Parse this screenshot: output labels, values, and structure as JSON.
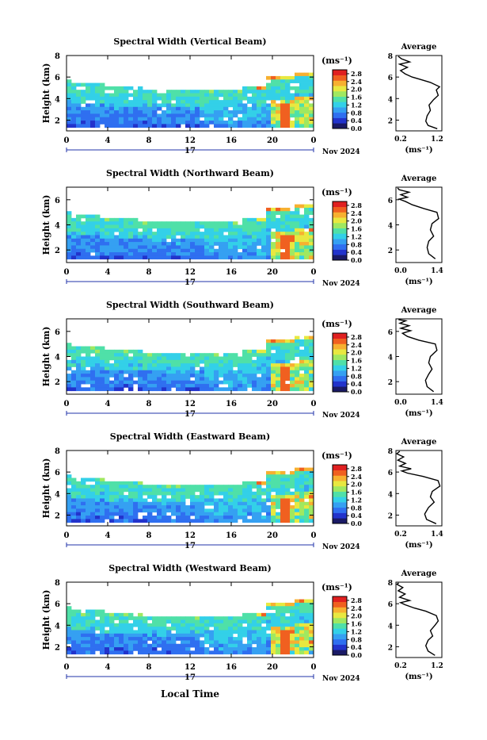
{
  "figure": {
    "bottom_label": "Local Time",
    "date_label": "Nov 2024",
    "day_label": "17",
    "x_ticks": [
      "0",
      "4",
      "8",
      "12",
      "16",
      "20",
      "0"
    ],
    "colorbar_unit": "(ms⁻¹)",
    "avg_xlabel": "(ms⁻¹)",
    "avg_title": "Average",
    "y_axis_label": "Height (km)",
    "colormap": [
      "#1a1a66",
      "#2233cc",
      "#2f6ff0",
      "#35a0f2",
      "#33d0e8",
      "#4fe0a8",
      "#a0e860",
      "#e8e840",
      "#f7b030",
      "#f06020",
      "#e02020"
    ]
  },
  "chart_data": [
    {
      "type": "heatmap",
      "title": "Spectral Width (Vertical Beam)",
      "ylabel": "Height (km)",
      "xlabel": "Local Time",
      "y_ticks": [
        "2",
        "4",
        "6",
        "8"
      ],
      "ylim": [
        1,
        8
      ],
      "xlim": [
        0,
        24
      ],
      "colorbar": {
        "label": "(ms⁻¹)",
        "ticks": [
          "0.0",
          "0.4",
          "0.8",
          "1.2",
          "1.6",
          "2.0",
          "2.4",
          "2.8"
        ],
        "range": [
          0,
          3.0
        ]
      },
      "average": {
        "title": "Average",
        "xlabel": "(ms⁻¹)",
        "x_ticks": [
          "0.2",
          "1.2"
        ],
        "y_ticks": [
          "2",
          "4",
          "6",
          "8"
        ],
        "xlim": [
          0.2,
          1.2
        ],
        "ylim": [
          1,
          8
        ],
        "points": [
          [
            1.1,
            1.2
          ],
          [
            0.9,
            1.5
          ],
          [
            0.85,
            1.9
          ],
          [
            0.88,
            2.4
          ],
          [
            0.95,
            2.9
          ],
          [
            0.92,
            3.4
          ],
          [
            1.02,
            3.9
          ],
          [
            1.12,
            4.3
          ],
          [
            1.08,
            4.8
          ],
          [
            1.15,
            5.1
          ],
          [
            0.95,
            5.5
          ],
          [
            0.72,
            5.8
          ],
          [
            0.55,
            6.0
          ],
          [
            0.4,
            6.3
          ],
          [
            0.3,
            6.6
          ],
          [
            0.45,
            6.9
          ],
          [
            0.28,
            7.2
          ],
          [
            0.5,
            7.4
          ],
          [
            0.32,
            7.7
          ],
          [
            0.25,
            7.95
          ]
        ]
      }
    },
    {
      "type": "heatmap",
      "title": "Spectral Width (Northward Beam)",
      "ylabel": "Height (km)",
      "xlabel": "Local Time",
      "y_ticks": [
        "2",
        "4",
        "6"
      ],
      "ylim": [
        1,
        7
      ],
      "xlim": [
        0,
        24
      ],
      "colorbar": {
        "label": "(ms⁻¹)",
        "ticks": [
          "0.0",
          "0.4",
          "0.8",
          "1.2",
          "1.6",
          "2.0",
          "2.4",
          "2.8"
        ],
        "range": [
          0,
          3.0
        ]
      },
      "average": {
        "title": "Average",
        "xlabel": "(ms⁻¹)",
        "x_ticks": [
          "0.0",
          "1.4"
        ],
        "y_ticks": [
          "2",
          "4",
          "6"
        ],
        "xlim": [
          0.0,
          1.4
        ],
        "ylim": [
          1,
          7
        ],
        "points": [
          [
            1.2,
            1.3
          ],
          [
            1.0,
            1.7
          ],
          [
            0.95,
            2.2
          ],
          [
            1.0,
            2.7
          ],
          [
            1.15,
            3.1
          ],
          [
            1.05,
            3.6
          ],
          [
            1.1,
            4.1
          ],
          [
            1.3,
            4.5
          ],
          [
            1.25,
            5.0
          ],
          [
            0.85,
            5.3
          ],
          [
            0.5,
            5.6
          ],
          [
            0.3,
            5.85
          ],
          [
            0.1,
            6.05
          ],
          [
            0.35,
            6.2
          ],
          [
            0.15,
            6.4
          ],
          [
            0.4,
            6.6
          ],
          [
            0.1,
            6.8
          ],
          [
            0.05,
            6.95
          ]
        ]
      }
    },
    {
      "type": "heatmap",
      "title": "Spectral Width (Southward Beam)",
      "ylabel": "Height (km)",
      "xlabel": "Local Time",
      "y_ticks": [
        "2",
        "4",
        "6"
      ],
      "ylim": [
        1,
        7
      ],
      "xlim": [
        0,
        24
      ],
      "colorbar": {
        "label": "(ms⁻¹)",
        "ticks": [
          "0.0",
          "0.4",
          "0.8",
          "1.2",
          "1.6",
          "2.0",
          "2.4",
          "2.8"
        ],
        "range": [
          0,
          3.0
        ]
      },
      "average": {
        "title": "Average",
        "xlabel": "(ms⁻¹)",
        "x_ticks": [
          "0.0",
          "1.4"
        ],
        "y_ticks": [
          "2",
          "4",
          "6"
        ],
        "xlim": [
          0.0,
          1.4
        ],
        "ylim": [
          1,
          7
        ],
        "points": [
          [
            1.15,
            1.2
          ],
          [
            0.95,
            1.6
          ],
          [
            0.9,
            2.1
          ],
          [
            1.0,
            2.6
          ],
          [
            1.1,
            3.0
          ],
          [
            1.0,
            3.5
          ],
          [
            1.05,
            4.0
          ],
          [
            1.25,
            4.5
          ],
          [
            1.2,
            5.0
          ],
          [
            0.7,
            5.3
          ],
          [
            0.35,
            5.6
          ],
          [
            0.2,
            5.85
          ],
          [
            0.45,
            6.05
          ],
          [
            0.15,
            6.25
          ],
          [
            0.4,
            6.45
          ],
          [
            0.12,
            6.65
          ],
          [
            0.3,
            6.85
          ],
          [
            0.08,
            6.95
          ]
        ]
      }
    },
    {
      "type": "heatmap",
      "title": "Spectral Width (Eastward Beam)",
      "ylabel": "Height (km)",
      "xlabel": "Local Time",
      "y_ticks": [
        "2",
        "4",
        "6",
        "8"
      ],
      "ylim": [
        1,
        8
      ],
      "xlim": [
        0,
        24
      ],
      "colorbar": {
        "label": "(ms⁻¹)",
        "ticks": [
          "0.0",
          "0.4",
          "0.8",
          "1.2",
          "1.6",
          "2.0",
          "2.4",
          "2.8"
        ],
        "range": [
          0,
          3.0
        ]
      },
      "average": {
        "title": "Average",
        "xlabel": "(ms⁻¹)",
        "x_ticks": [
          "0.2",
          "1.4"
        ],
        "y_ticks": [
          "2",
          "4",
          "6",
          "8"
        ],
        "xlim": [
          0.2,
          1.4
        ],
        "ylim": [
          1,
          8
        ],
        "points": [
          [
            1.25,
            1.2
          ],
          [
            1.0,
            1.6
          ],
          [
            0.95,
            2.1
          ],
          [
            1.05,
            2.7
          ],
          [
            1.2,
            3.2
          ],
          [
            1.1,
            3.7
          ],
          [
            1.15,
            4.2
          ],
          [
            1.35,
            4.7
          ],
          [
            1.3,
            5.2
          ],
          [
            0.9,
            5.6
          ],
          [
            0.5,
            5.9
          ],
          [
            0.35,
            6.1
          ],
          [
            0.6,
            6.3
          ],
          [
            0.3,
            6.55
          ],
          [
            0.45,
            6.8
          ],
          [
            0.25,
            7.1
          ],
          [
            0.4,
            7.4
          ],
          [
            0.22,
            7.7
          ],
          [
            0.3,
            7.95
          ]
        ]
      }
    },
    {
      "type": "heatmap",
      "title": "Spectral Width (Westward Beam)",
      "ylabel": "Height (km)",
      "xlabel": "Local Time",
      "y_ticks": [
        "2",
        "4",
        "6",
        "8"
      ],
      "ylim": [
        1,
        8
      ],
      "xlim": [
        0,
        24
      ],
      "colorbar": {
        "label": "(ms⁻¹)",
        "ticks": [
          "0.0",
          "0.4",
          "0.8",
          "1.2",
          "1.6",
          "2.0",
          "2.4",
          "2.8"
        ],
        "range": [
          0,
          3.0
        ]
      },
      "average": {
        "title": "Average",
        "xlabel": "(ms⁻¹)",
        "x_ticks": [
          "0.2",
          "1.2"
        ],
        "y_ticks": [
          "2",
          "4",
          "6",
          "8"
        ],
        "xlim": [
          0.2,
          1.2
        ],
        "ylim": [
          1,
          8
        ],
        "points": [
          [
            1.05,
            1.2
          ],
          [
            0.9,
            1.6
          ],
          [
            0.85,
            2.1
          ],
          [
            0.9,
            2.6
          ],
          [
            1.0,
            3.0
          ],
          [
            0.95,
            3.5
          ],
          [
            1.05,
            4.0
          ],
          [
            1.12,
            4.4
          ],
          [
            1.08,
            4.9
          ],
          [
            0.85,
            5.3
          ],
          [
            0.6,
            5.6
          ],
          [
            0.4,
            5.9
          ],
          [
            0.3,
            6.1
          ],
          [
            0.5,
            6.3
          ],
          [
            0.28,
            6.6
          ],
          [
            0.4,
            6.9
          ],
          [
            0.25,
            7.2
          ],
          [
            0.35,
            7.5
          ],
          [
            0.22,
            7.8
          ],
          [
            0.26,
            7.95
          ]
        ]
      }
    }
  ]
}
